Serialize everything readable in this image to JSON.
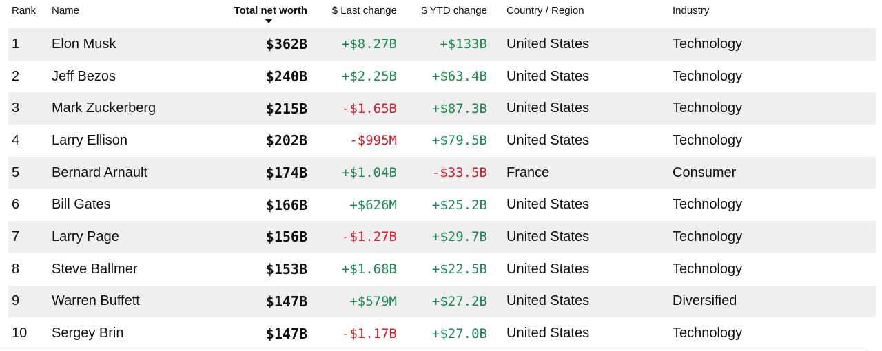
{
  "columns": {
    "rank": "Rank",
    "name": "Name",
    "net_worth": "Total net worth",
    "last_change": "$ Last change",
    "ytd_change": "$ YTD change",
    "country": "Country / Region",
    "industry": "Industry"
  },
  "sort": {
    "column": "net_worth",
    "direction": "descending"
  },
  "colors": {
    "positive": "#1e8a52",
    "negative": "#d81e2c",
    "row_shade": "#efefef"
  },
  "rows": [
    {
      "rank": "1",
      "name": "Elon Musk",
      "net_worth": "$362B",
      "last_change": "+$8.27B",
      "ytd_change": "+$133B",
      "country": "United States",
      "industry": "Technology"
    },
    {
      "rank": "2",
      "name": "Jeff Bezos",
      "net_worth": "$240B",
      "last_change": "+$2.25B",
      "ytd_change": "+$63.4B",
      "country": "United States",
      "industry": "Technology"
    },
    {
      "rank": "3",
      "name": "Mark Zuckerberg",
      "net_worth": "$215B",
      "last_change": "-$1.65B",
      "ytd_change": "+$87.3B",
      "country": "United States",
      "industry": "Technology"
    },
    {
      "rank": "4",
      "name": "Larry Ellison",
      "net_worth": "$202B",
      "last_change": "-$995M",
      "ytd_change": "+$79.5B",
      "country": "United States",
      "industry": "Technology"
    },
    {
      "rank": "5",
      "name": "Bernard Arnault",
      "net_worth": "$174B",
      "last_change": "+$1.04B",
      "ytd_change": "-$33.5B",
      "country": "France",
      "industry": "Consumer"
    },
    {
      "rank": "6",
      "name": "Bill Gates",
      "net_worth": "$166B",
      "last_change": "+$626M",
      "ytd_change": "+$25.2B",
      "country": "United States",
      "industry": "Technology"
    },
    {
      "rank": "7",
      "name": "Larry Page",
      "net_worth": "$156B",
      "last_change": "-$1.27B",
      "ytd_change": "+$29.7B",
      "country": "United States",
      "industry": "Technology"
    },
    {
      "rank": "8",
      "name": "Steve Ballmer",
      "net_worth": "$153B",
      "last_change": "+$1.68B",
      "ytd_change": "+$22.5B",
      "country": "United States",
      "industry": "Technology"
    },
    {
      "rank": "9",
      "name": "Warren Buffett",
      "net_worth": "$147B",
      "last_change": "+$579M",
      "ytd_change": "+$27.2B",
      "country": "United States",
      "industry": "Diversified"
    },
    {
      "rank": "10",
      "name": "Sergey Brin",
      "net_worth": "$147B",
      "last_change": "-$1.17B",
      "ytd_change": "+$27.0B",
      "country": "United States",
      "industry": "Technology"
    }
  ]
}
